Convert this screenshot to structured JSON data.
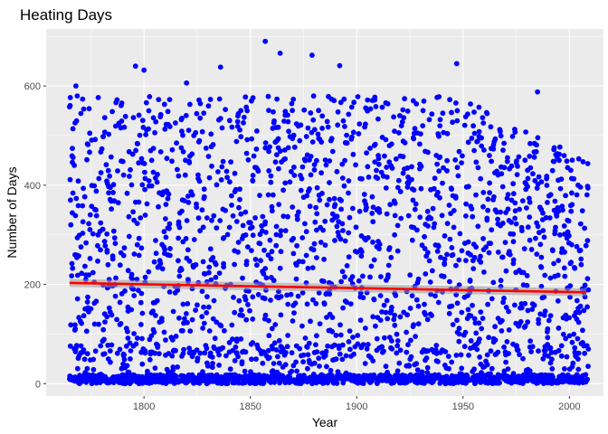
{
  "chart_data": {
    "type": "scatter",
    "title": "Heating Days",
    "xlabel": "Year",
    "ylabel": "Number of Days",
    "xlim": [
      1754,
      2016
    ],
    "ylim": [
      -25,
      715
    ],
    "x_ticks": [
      1800,
      1850,
      1900,
      1950,
      2000
    ],
    "y_ticks": [
      0,
      200,
      400,
      600
    ],
    "grid": true,
    "legend": "none",
    "point_color": "#0000ff",
    "trend_color": "#ff0000",
    "band_color": "#999999",
    "panel_color": "#ebebeb",
    "year_range": [
      1765,
      2008
    ],
    "trend": {
      "x": [
        1765,
        2008
      ],
      "y": [
        203,
        184
      ],
      "ci_low": [
        195,
        176
      ],
      "ci_high": [
        211,
        192
      ]
    },
    "highlight_points": [
      {
        "x": 1765,
        "y": 558
      },
      {
        "x": 1768,
        "y": 600
      },
      {
        "x": 1796,
        "y": 640
      },
      {
        "x": 1800,
        "y": 632
      },
      {
        "x": 1820,
        "y": 606
      },
      {
        "x": 1836,
        "y": 638
      },
      {
        "x": 1857,
        "y": 690
      },
      {
        "x": 1864,
        "y": 666
      },
      {
        "x": 1879,
        "y": 662
      },
      {
        "x": 1892,
        "y": 641
      },
      {
        "x": 1947,
        "y": 645
      },
      {
        "x": 1985,
        "y": 588
      }
    ]
  }
}
